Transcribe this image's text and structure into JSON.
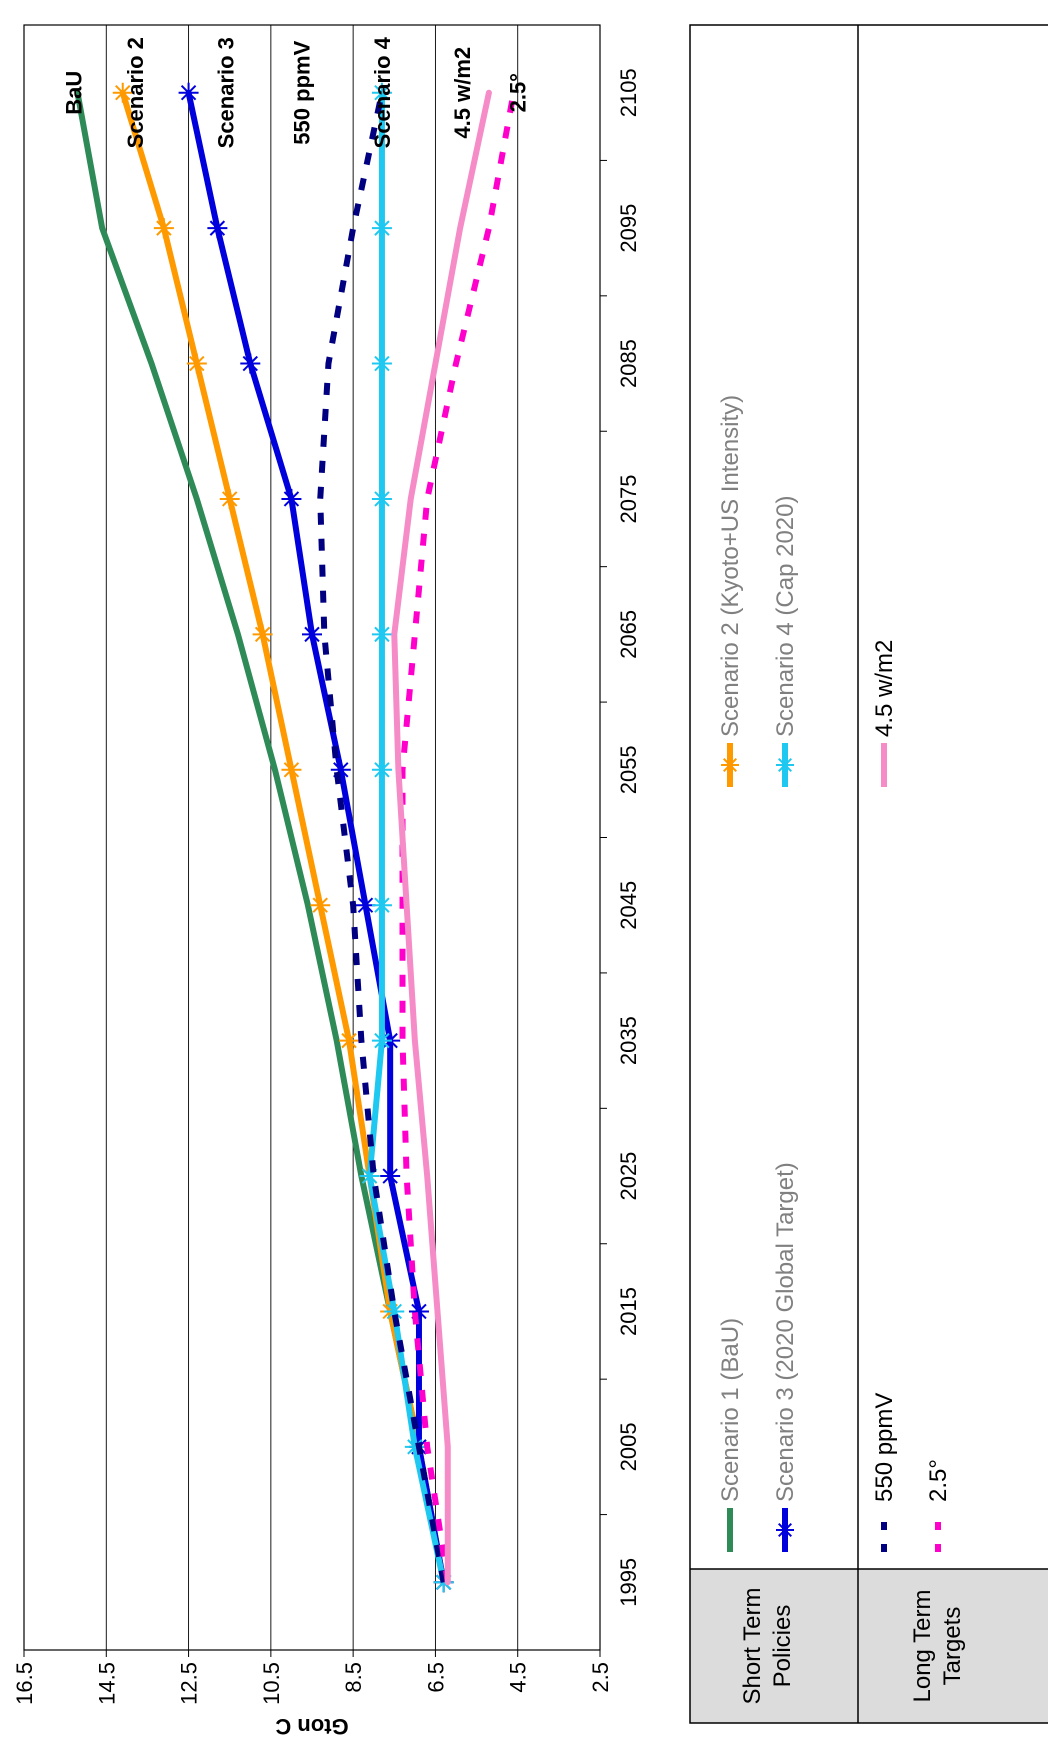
{
  "chart_data": {
    "type": "line",
    "ylabel": "Gton C",
    "ylim": [
      2.5,
      16.5
    ],
    "yticks": [
      "2.5",
      "4.5",
      "6.5",
      "8.5",
      "10.5",
      "12.5",
      "14.5",
      "16.5"
    ],
    "xlim": [
      1990,
      2110
    ],
    "xticks": [
      "1995",
      "2005",
      "2015",
      "2025",
      "2035",
      "2045",
      "2055",
      "2065",
      "2075",
      "2085",
      "2095",
      "2105"
    ],
    "grid": true,
    "series": [
      {
        "name": "Scenario 1 (BaU)",
        "group": "short",
        "color": "#2e8b57",
        "style": "solid",
        "marker": "none",
        "x": [
          1995,
          2005,
          2015,
          2025,
          2035,
          2045,
          2055,
          2065,
          2075,
          2085,
          2095,
          2105
        ],
        "y": [
          6.3,
          6.9,
          7.6,
          8.3,
          8.9,
          9.6,
          10.4,
          11.3,
          12.3,
          13.4,
          14.6,
          15.2
        ]
      },
      {
        "name": "Scenario 2 (Kyoto+US Intensity)",
        "group": "short",
        "color": "#ff9900",
        "style": "solid",
        "marker": "asterisk",
        "x": [
          1995,
          2005,
          2015,
          2025,
          2035,
          2045,
          2055,
          2065,
          2075,
          2085,
          2095,
          2105
        ],
        "y": [
          6.3,
          6.9,
          7.6,
          8.1,
          8.6,
          9.3,
          10.0,
          10.7,
          11.5,
          12.3,
          13.1,
          14.1
        ]
      },
      {
        "name": "Scenario 3 (2020 Global Target)",
        "group": "short",
        "color": "#0000dd",
        "style": "solid",
        "marker": "asterisk",
        "x": [
          1995,
          2005,
          2015,
          2025,
          2035,
          2045,
          2055,
          2065,
          2075,
          2085,
          2095,
          2105
        ],
        "y": [
          6.3,
          6.9,
          6.9,
          7.6,
          7.6,
          8.2,
          8.8,
          9.5,
          10.0,
          11.0,
          11.8,
          12.5
        ]
      },
      {
        "name": "Scenario 4 (Cap 2020)",
        "group": "short",
        "color": "#1ec8f0",
        "style": "solid",
        "marker": "asterisk",
        "x": [
          1995,
          2005,
          2015,
          2025,
          2035,
          2045,
          2055,
          2065,
          2075,
          2085,
          2095,
          2105
        ],
        "y": [
          6.3,
          7.0,
          7.5,
          8.1,
          7.8,
          7.8,
          7.8,
          7.8,
          7.8,
          7.8,
          7.8,
          7.8
        ]
      },
      {
        "name": "550 ppmV",
        "group": "long",
        "color": "#000080",
        "style": "dashed",
        "marker": "none",
        "x": [
          1995,
          2005,
          2015,
          2025,
          2035,
          2045,
          2055,
          2065,
          2075,
          2085,
          2095,
          2105
        ],
        "y": [
          6.3,
          6.9,
          7.5,
          8.0,
          8.3,
          8.5,
          8.9,
          9.2,
          9.3,
          9.1,
          8.5,
          7.8
        ]
      },
      {
        "name": "2.5°",
        "group": "long",
        "color": "#ff00cc",
        "style": "dashed",
        "marker": "none",
        "x": [
          1995,
          2005,
          2015,
          2025,
          2035,
          2045,
          2055,
          2065,
          2075,
          2085,
          2095,
          2105
        ],
        "y": [
          6.2,
          6.7,
          7.0,
          7.2,
          7.3,
          7.3,
          7.3,
          7.0,
          6.7,
          6.0,
          5.2,
          4.6
        ]
      },
      {
        "name": "4.5 w/m2",
        "group": "long",
        "color": "#f58cc8",
        "style": "solid",
        "marker": "none",
        "x": [
          1995,
          2005,
          2025,
          2035,
          2045,
          2055,
          2065,
          2075,
          2085,
          2095,
          2105
        ],
        "y": [
          6.2,
          6.2,
          6.7,
          7.0,
          7.2,
          7.4,
          7.5,
          7.1,
          6.5,
          5.9,
          5.2
        ]
      }
    ],
    "annotations": [
      {
        "text": "BaU",
        "x": 2105,
        "y": 15.3
      },
      {
        "text": "Scenario 2",
        "x": 2105,
        "y": 13.8
      },
      {
        "text": "Scenario 3",
        "x": 2105,
        "y": 11.6
      },
      {
        "text": "550 ppmV",
        "x": 2105,
        "y": 9.75
      },
      {
        "text": "Scenario 4",
        "x": 2105,
        "y": 7.8
      },
      {
        "text": "4.5 w/m2",
        "x": 2105,
        "y": 5.85
      },
      {
        "text": "2.5°",
        "x": 2105,
        "y": 4.5
      }
    ]
  },
  "legend": {
    "short_label": "Short Term\nPolicies",
    "long_label": "Long Term\nTargets",
    "short_items": [
      "Scenario 1 (BaU)",
      "Scenario 2 (Kyoto+US Intensity)",
      "Scenario 3 (2020 Global Target)",
      "Scenario 4 (Cap 2020)"
    ],
    "long_items": [
      "550 ppmV",
      "4.5 w/m2",
      "2.5°"
    ]
  }
}
